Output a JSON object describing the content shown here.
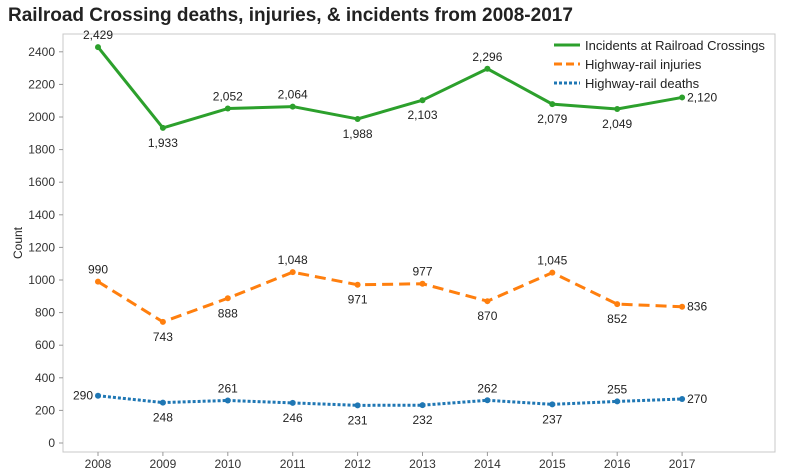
{
  "chart_data": {
    "type": "line",
    "title": "Railroad Crossing deaths, injuries, & incidents from 2008-2017",
    "xlabel": "",
    "ylabel": "Count",
    "ylim": [
      0,
      2500
    ],
    "yticks": [
      0,
      200,
      400,
      600,
      800,
      1000,
      1200,
      1400,
      1600,
      1800,
      2000,
      2200,
      2400
    ],
    "categories": [
      "2008",
      "2009",
      "2010",
      "2011",
      "2012",
      "2013",
      "2014",
      "2015",
      "2016",
      "2017"
    ],
    "legend_position": "top-right",
    "series": [
      {
        "name": "Incidents at Railroad Crossings",
        "color": "#2ca02c",
        "style": "solid",
        "values": [
          2429,
          1933,
          2052,
          2064,
          1988,
          2103,
          2296,
          2079,
          2049,
          2120
        ],
        "labels": [
          "2,429",
          "1,933",
          "2,052",
          "2,064",
          "1,988",
          "2,103",
          "2,296",
          "2,079",
          "2,049",
          "2,120"
        ],
        "label_pos": [
          "above",
          "below",
          "above",
          "above",
          "below",
          "below",
          "above",
          "below",
          "below",
          "right"
        ]
      },
      {
        "name": "Highway-rail injuries",
        "color": "#ff7f0e",
        "style": "dashed",
        "values": [
          990,
          743,
          888,
          1048,
          971,
          977,
          870,
          1045,
          852,
          836
        ],
        "labels": [
          "990",
          "743",
          "888",
          "1,048",
          "971",
          "977",
          "870",
          "1,045",
          "852",
          "836"
        ],
        "label_pos": [
          "above",
          "below",
          "below",
          "above",
          "below",
          "above",
          "below",
          "above",
          "below",
          "right"
        ]
      },
      {
        "name": "Highway-rail deaths",
        "color": "#1f77b4",
        "style": "dotted",
        "values": [
          290,
          248,
          261,
          246,
          231,
          232,
          262,
          237,
          255,
          270
        ],
        "labels": [
          "290",
          "248",
          "261",
          "246",
          "231",
          "232",
          "262",
          "237",
          "255",
          "270"
        ],
        "label_pos": [
          "left",
          "below",
          "above",
          "below",
          "below",
          "below",
          "above",
          "below",
          "above",
          "right"
        ]
      }
    ]
  }
}
